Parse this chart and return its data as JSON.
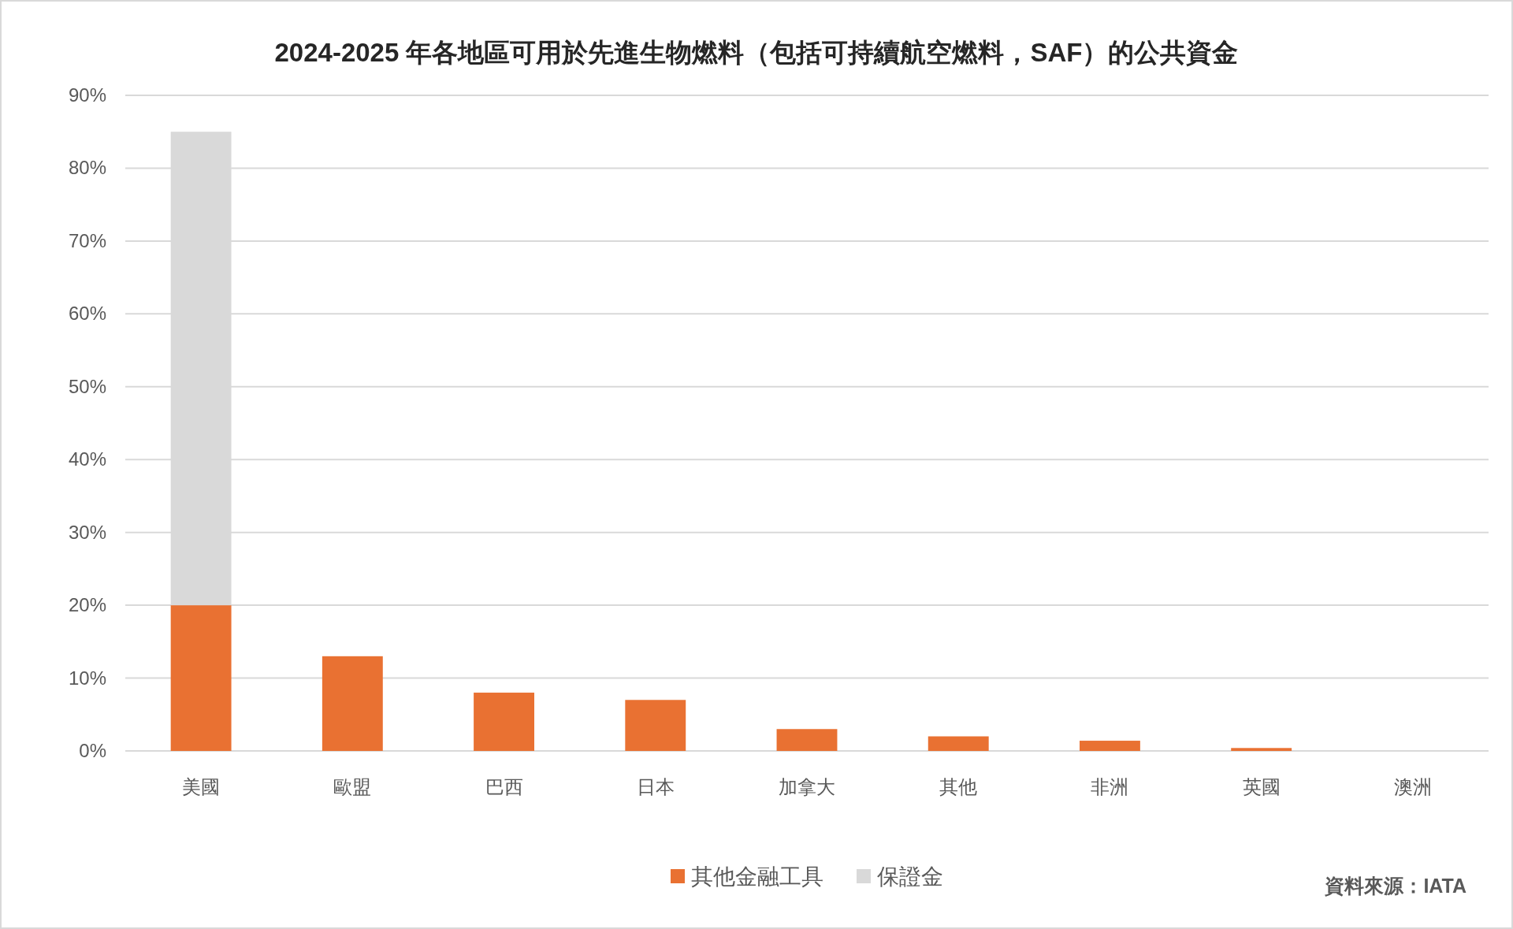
{
  "chart_data": {
    "type": "bar",
    "title": "2024-2025 年各地區可用於先進生物燃料（包括可持續航空燃料，SAF）的公共資金",
    "categories": [
      "美國",
      "歐盟",
      "巴西",
      "日本",
      "加拿大",
      "其他",
      "非洲",
      "英國",
      "澳洲"
    ],
    "stacked": true,
    "series": [
      {
        "name": "其他金融工具",
        "color": "#e97132",
        "values": [
          20,
          13,
          8,
          7,
          3,
          2,
          1.4,
          0.4,
          0
        ]
      },
      {
        "name": "保證金",
        "color": "#d9d9d9",
        "values": [
          65,
          null,
          null,
          null,
          null,
          null,
          null,
          null,
          null
        ]
      }
    ],
    "ylim": [
      0,
      90
    ],
    "yticks": [
      {
        "value": 0,
        "label": "0%"
      },
      {
        "value": 10,
        "label": "10%"
      },
      {
        "value": 20,
        "label": "20%"
      },
      {
        "value": 30,
        "label": "30%"
      },
      {
        "value": 40,
        "label": "40%"
      },
      {
        "value": 50,
        "label": "50%"
      },
      {
        "value": 60,
        "label": "60%"
      },
      {
        "value": 70,
        "label": "70%"
      },
      {
        "value": 80,
        "label": "80%"
      },
      {
        "value": 90,
        "label": "90%"
      }
    ],
    "grid": "y",
    "legend": "bottom",
    "annotations": [
      "資料來源：IATA"
    ]
  }
}
